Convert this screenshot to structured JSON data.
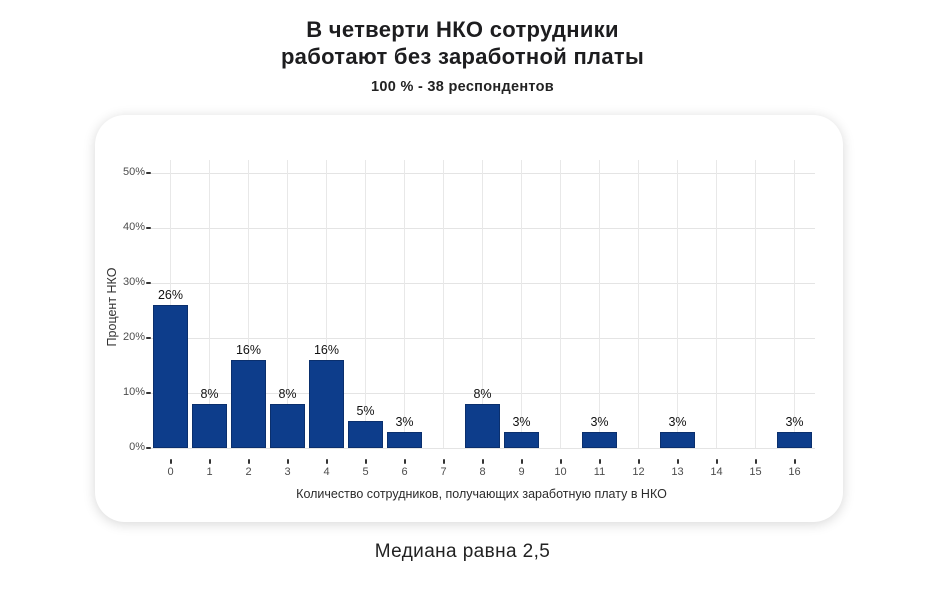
{
  "header": {
    "title_line1": "В четверти НКО сотрудники",
    "title_line2": "работают без заработной платы",
    "subtitle": "100 % - 38 респондентов"
  },
  "footer": {
    "caption": "Медиана равна 2,5"
  },
  "colors": {
    "bar_fill": "#0d3d8b",
    "bar_border": "#0a2f6d",
    "gridline_h": "#e4e4e4",
    "gridline_v": "#e8e8e8",
    "tick_text": "#4d4d4d",
    "tick_mark": "#333333"
  },
  "chart_data": {
    "type": "bar",
    "title": "В четверти НКО сотрудники работают без заработной платы",
    "subtitle": "100 % - 38 респондентов",
    "xlabel": "Количество сотрудников, получающих заработную плату в НКО",
    "ylabel": "Процент НКО",
    "categories": [
      "0",
      "1",
      "2",
      "3",
      "4",
      "5",
      "6",
      "7",
      "8",
      "9",
      "10",
      "11",
      "12",
      "13",
      "14",
      "15",
      "16"
    ],
    "values": [
      26,
      8,
      16,
      8,
      16,
      5,
      3,
      0,
      8,
      3,
      0,
      3,
      0,
      3,
      0,
      0,
      3
    ],
    "bar_labels": [
      "26%",
      "8%",
      "16%",
      "8%",
      "16%",
      "5%",
      "3%",
      "",
      "8%",
      "3%",
      "",
      "3%",
      "",
      "3%",
      "",
      "",
      "3%"
    ],
    "y_tick_values": [
      0,
      10,
      20,
      30,
      40,
      50
    ],
    "y_tick_labels": [
      "0%",
      "10%",
      "20%",
      "30%",
      "40%",
      "50%"
    ],
    "ylim": [
      0,
      52.4
    ],
    "grid": true,
    "legend": false
  }
}
